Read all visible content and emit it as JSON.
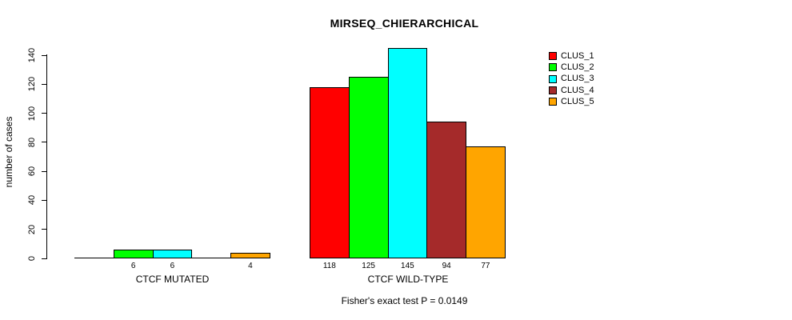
{
  "chart_data": {
    "type": "bar",
    "title": "MIRSEQ_CHIERARCHICAL",
    "ylabel": "number of cases",
    "xlabel": "",
    "footnote": "Fisher's exact test P = 0.0149",
    "groups": [
      "CTCF MUTATED",
      "CTCF WILD-TYPE"
    ],
    "series": [
      {
        "name": "CLUS_1",
        "color": "#ff0000",
        "values": [
          0,
          118
        ]
      },
      {
        "name": "CLUS_2",
        "color": "#00ff00",
        "values": [
          6,
          125
        ]
      },
      {
        "name": "CLUS_3",
        "color": "#00ffff",
        "values": [
          6,
          145
        ]
      },
      {
        "name": "CLUS_4",
        "color": "#a52a2a",
        "values": [
          0,
          94
        ]
      },
      {
        "name": "CLUS_5",
        "color": "#ffa500",
        "values": [
          4,
          77
        ]
      }
    ],
    "bar_value_labels": {
      "show": true,
      "hide_zero": true
    },
    "yticks": [
      0,
      20,
      40,
      60,
      80,
      100,
      120,
      140
    ],
    "ylim": [
      0,
      145
    ],
    "grid": false,
    "legend": {
      "position": "top-right",
      "entries": [
        "CLUS_1",
        "CLUS_2",
        "CLUS_3",
        "CLUS_4",
        "CLUS_5"
      ]
    }
  }
}
